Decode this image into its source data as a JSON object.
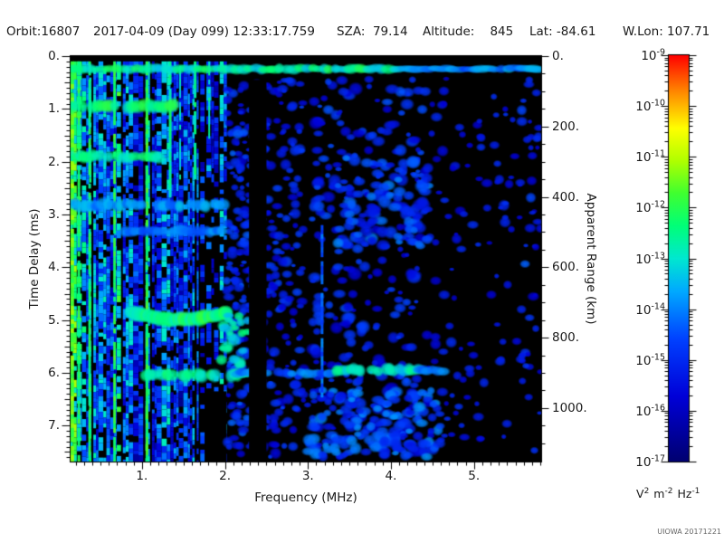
{
  "header": {
    "orbit": "Orbit:16807",
    "datetime": "2017-04-09 (Day 099) 12:33:17.759",
    "sza": "SZA:  79.14",
    "altitude": "Altitude:    845",
    "lat": "Lat: -84.61",
    "wlon": "W.Lon: 107.71"
  },
  "axes": {
    "x": {
      "label": "Frequency (MHz)",
      "tick_labels": [
        "1.",
        "2.",
        "3.",
        "4.",
        "5."
      ],
      "tick_values": [
        1,
        2,
        3,
        4,
        5
      ],
      "range": [
        0.14,
        5.81
      ],
      "minor_step": 0.1
    },
    "y_left": {
      "label": "Time Delay (ms)",
      "tick_labels": [
        "0.",
        "1.",
        "2.",
        "3.",
        "4.",
        "5.",
        "6.",
        "7."
      ],
      "tick_values": [
        0,
        1,
        2,
        3,
        4,
        5,
        6,
        7
      ],
      "range": [
        0,
        7.68
      ],
      "minor_step": 0.1
    },
    "y_right": {
      "label": "Apparent Range (km)",
      "tick_labels": [
        "0.",
        "200.",
        "400.",
        "600.",
        "800.",
        "1000."
      ],
      "tick_values": [
        0,
        200,
        400,
        600,
        800,
        1000
      ],
      "range": [
        0,
        1152
      ],
      "minor_step": 50
    }
  },
  "colorbar": {
    "base": "10",
    "exponents": [
      "-9",
      "-10",
      "-11",
      "-12",
      "-13",
      "-14",
      "-15",
      "-16",
      "-17"
    ],
    "units_parts": [
      {
        "t": "V",
        "sup": "2"
      },
      {
        "t": "m",
        "sup": "-2"
      },
      {
        "t": "Hz",
        "sup": "-1"
      }
    ],
    "scale": "log",
    "max": "1e-9",
    "min": "1e-17"
  },
  "footer": "UIOWA 20171221",
  "chart_data": {
    "type": "heatmap",
    "subtype": "radar-sounder-ionogram-spectrogram",
    "title": "",
    "xlabel": "Frequency (MHz)",
    "ylabel_left": "Time Delay (ms)",
    "ylabel_right": "Apparent Range (km)",
    "x_range_mhz": [
      0.14,
      5.81
    ],
    "y_range_ms": [
      0,
      7.68
    ],
    "range_km_per_ms": 150,
    "intensity_units": "V^2 m^-2 Hz^-1",
    "intensity_range": [
      "1e-17",
      "1e-9"
    ],
    "background": "#000000",
    "colormap": [
      [
        0.0,
        "#000070"
      ],
      [
        0.16,
        "#0000d8"
      ],
      [
        0.3,
        "#0040ff"
      ],
      [
        0.42,
        "#00aaff"
      ],
      [
        0.5,
        "#00e8d0"
      ],
      [
        0.58,
        "#00ff78"
      ],
      [
        0.66,
        "#40ff30"
      ],
      [
        0.74,
        "#b0ff00"
      ],
      [
        0.82,
        "#ffff00"
      ],
      [
        0.91,
        "#ff8800"
      ],
      [
        1.0,
        "#ff0000"
      ]
    ],
    "features": [
      {
        "kind": "stripe_forest",
        "f": [
          0.14,
          2.02
        ],
        "d": [
          0.1,
          7.68
        ],
        "note": "dense vertical plasma-line striations below ~2 MHz"
      },
      {
        "kind": "black_patch",
        "f": [
          1.76,
          2.02
        ],
        "d": [
          6.35,
          7.68
        ],
        "alpha": 1
      },
      {
        "kind": "black_patch",
        "f": [
          2.88,
          2.99
        ],
        "d": [
          0.45,
          5.2
        ],
        "alpha": 0.6
      },
      {
        "kind": "vline",
        "f": 0.16,
        "d": [
          0.1,
          7.68
        ],
        "w": 4,
        "level": 0.68
      },
      {
        "kind": "vline",
        "f": 0.24,
        "d": [
          0.1,
          7.68
        ],
        "w": 3,
        "level": 0.6
      },
      {
        "kind": "vline",
        "f": 0.37,
        "d": [
          0.1,
          7.68
        ],
        "w": 3,
        "level": 0.58
      },
      {
        "kind": "vline",
        "f": 0.67,
        "d": [
          0.1,
          7.68
        ],
        "w": 3,
        "level": 0.62
      },
      {
        "kind": "vline",
        "f": 1.06,
        "d": [
          0.1,
          7.68
        ],
        "w": 3,
        "level": 0.62
      },
      {
        "kind": "vline",
        "f": 1.34,
        "d": [
          0.1,
          2.6
        ],
        "w": 3,
        "level": 0.55
      },
      {
        "kind": "vline",
        "f": 1.46,
        "d": [
          0.1,
          2.3
        ],
        "w": 2,
        "level": 0.5
      },
      {
        "kind": "vline",
        "f": 1.64,
        "d": [
          0.1,
          2.3
        ],
        "w": 3,
        "level": 0.55
      },
      {
        "kind": "vline",
        "f": 1.81,
        "d": [
          0.1,
          1.5
        ],
        "w": 2,
        "level": 0.52
      },
      {
        "kind": "blob_field",
        "f": [
          2.02,
          2.95
        ],
        "d": [
          0.45,
          7.6
        ],
        "n": 300,
        "level": [
          0.15,
          0.3
        ],
        "r": [
          2,
          5
        ]
      },
      {
        "kind": "blob_field",
        "f": [
          3.05,
          4.4
        ],
        "d": [
          0.4,
          7.6
        ],
        "n": 330,
        "level": [
          0.15,
          0.32
        ],
        "r": [
          2,
          6
        ]
      },
      {
        "kind": "blob_field",
        "f": [
          4.4,
          5.8
        ],
        "d": [
          0.4,
          7.6
        ],
        "n": 140,
        "level": [
          0.13,
          0.27
        ],
        "r": [
          2,
          5
        ]
      },
      {
        "kind": "blob_field",
        "f": [
          3.35,
          4.5
        ],
        "d": [
          1.9,
          3.6
        ],
        "n": 90,
        "level": [
          0.2,
          0.38
        ],
        "r": [
          3,
          6
        ]
      },
      {
        "kind": "blob_field",
        "f": [
          2.95,
          4.6
        ],
        "d": [
          6.3,
          7.6
        ],
        "n": 140,
        "level": [
          0.2,
          0.4
        ],
        "r": [
          3,
          6
        ]
      },
      {
        "kind": "blob_field",
        "f": [
          2.02,
          2.28
        ],
        "d": [
          0.5,
          7.6
        ],
        "n": 70,
        "level": [
          0.18,
          0.34
        ],
        "r": [
          2,
          5
        ]
      },
      {
        "kind": "blob_field",
        "f": [
          5.55,
          5.81
        ],
        "d": [
          0.5,
          6.5
        ],
        "n": 16,
        "level": [
          0.2,
          0.35
        ],
        "r": [
          3,
          5
        ]
      },
      {
        "kind": "vline",
        "f": 3.17,
        "d": [
          3.2,
          6.4
        ],
        "w": 3,
        "level": 0.33
      },
      {
        "kind": "hband",
        "f": [
          0.14,
          1.4
        ],
        "d": 0.95,
        "th": 0.16,
        "level": 0.58
      },
      {
        "kind": "hband",
        "f": [
          0.14,
          1.25
        ],
        "d": 1.9,
        "th": 0.14,
        "level": 0.55
      },
      {
        "kind": "hband",
        "f": [
          0.14,
          2.0
        ],
        "d": 2.82,
        "th": 0.14,
        "level": 0.4
      },
      {
        "kind": "hband",
        "f": [
          0.8,
          2.0
        ],
        "d": 3.32,
        "th": 0.12,
        "level": 0.36
      },
      {
        "kind": "arc",
        "f": [
          0.85,
          2.05
        ],
        "d": 4.85,
        "sag": 0.14,
        "th": 0.18,
        "level": 0.57,
        "note": "ionospheric echo trace ~4.8-5.0 ms"
      },
      {
        "kind": "cluster",
        "f": [
          1.95,
          2.28
        ],
        "d": [
          4.9,
          6.05
        ],
        "n": 26,
        "level": [
          0.42,
          0.6
        ],
        "r": [
          3,
          6
        ],
        "note": "echo cusp near 2.1 MHz"
      },
      {
        "kind": "hband",
        "f": [
          1.05,
          2.15
        ],
        "d": 6.05,
        "th": 0.16,
        "level": 0.55
      },
      {
        "kind": "hband",
        "f": [
          2.15,
          3.3
        ],
        "d": 6.0,
        "th": 0.1,
        "level": 0.34
      },
      {
        "kind": "hband",
        "f": [
          3.3,
          4.35
        ],
        "d": 5.95,
        "th": 0.14,
        "level": 0.5,
        "note": "surface reflection ~5.9-6.0 ms"
      },
      {
        "kind": "hband",
        "f": [
          4.35,
          4.75
        ],
        "d": 5.95,
        "th": 0.1,
        "level": 0.34
      },
      {
        "kind": "black_gap",
        "f": [
          2.29,
          2.5
        ],
        "d": [
          0.45,
          7.68
        ],
        "note": "quiet/blanked frequency band ~2.3-2.5 MHz"
      },
      {
        "kind": "top_trace",
        "f": [
          0.17,
          5.78
        ],
        "d": 0.24,
        "th": 0.18,
        "green_until": 4.15,
        "level_green": [
          0.45,
          0.62
        ],
        "level_blue": [
          0.28,
          0.45
        ],
        "note": "near-zero-delay direct signal across all frequencies"
      }
    ]
  }
}
